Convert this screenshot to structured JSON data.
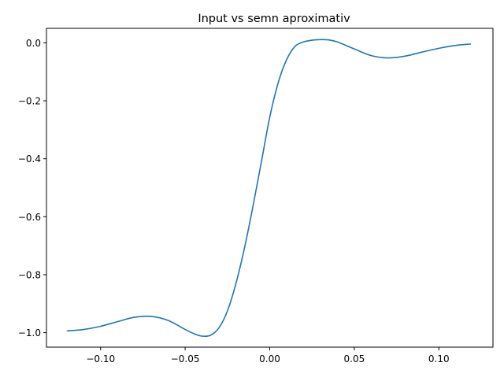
{
  "chart_data": {
    "type": "line",
    "title": "Input vs semn aproximativ",
    "xlabel": "",
    "ylabel": "",
    "xlim": [
      -0.132,
      0.132
    ],
    "ylim": [
      -1.05,
      0.05
    ],
    "grid": false,
    "x_ticks": [
      -0.1,
      -0.05,
      0.0,
      0.05,
      0.1
    ],
    "x_tick_labels": [
      "−0.10",
      "−0.05",
      "0.00",
      "0.05",
      "0.10"
    ],
    "y_ticks": [
      0.0,
      -0.2,
      -0.4,
      -0.6,
      -0.8,
      -1.0
    ],
    "y_tick_labels": [
      "0.0",
      "−0.2",
      "−0.4",
      "−0.6",
      "−0.8",
      "−1.0"
    ],
    "series": [
      {
        "color": "#1f77b4",
        "x": [
          -0.12,
          -0.11,
          -0.1,
          -0.09,
          -0.08,
          -0.07,
          -0.06,
          -0.05,
          -0.045,
          -0.04,
          -0.035,
          -0.03,
          -0.025,
          -0.02,
          -0.015,
          -0.01,
          -0.005,
          0.0,
          0.005,
          0.01,
          0.015,
          0.02,
          0.025,
          0.03,
          0.035,
          0.04,
          0.05,
          0.06,
          0.07,
          0.08,
          0.09,
          0.1,
          0.11,
          0.119
        ],
        "y": [
          -0.994,
          -0.989,
          -0.978,
          -0.962,
          -0.947,
          -0.944,
          -0.958,
          -0.989,
          -1.003,
          -1.012,
          -1.009,
          -0.983,
          -0.925,
          -0.831,
          -0.71,
          -0.567,
          -0.413,
          -0.257,
          -0.138,
          -0.058,
          -0.012,
          0.003,
          0.009,
          0.011,
          0.01,
          0.003,
          -0.021,
          -0.044,
          -0.052,
          -0.046,
          -0.032,
          -0.019,
          -0.009,
          -0.004
        ]
      }
    ]
  }
}
